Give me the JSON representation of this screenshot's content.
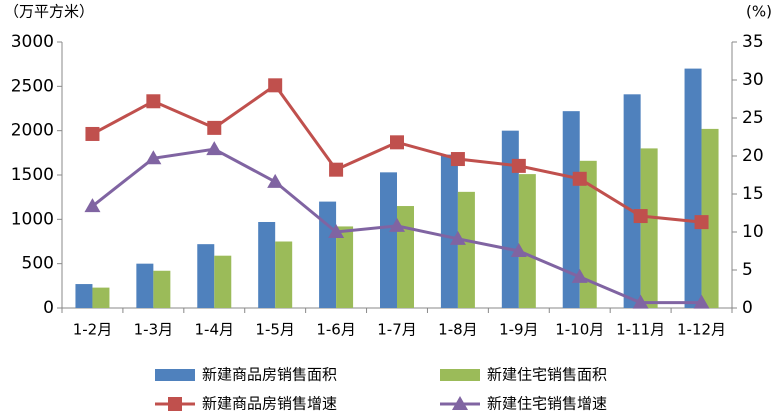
{
  "chart_data": {
    "type": "bar",
    "y_label": "（万平方米）",
    "y2_label": "(%)",
    "categories": [
      "1-2月",
      "1-3月",
      "1-4月",
      "1-5月",
      "1-6月",
      "1-7月",
      "1-8月",
      "1-9月",
      "1-10月",
      "1-11月",
      "1-12月"
    ],
    "series": [
      {
        "name": "新建商品房销售面积",
        "type": "bar",
        "color": "#4f81bd",
        "values": [
          270,
          500,
          720,
          970,
          1200,
          1530,
          1730,
          2000,
          2220,
          2410,
          2700
        ]
      },
      {
        "name": "新建住宅销售面积",
        "type": "bar",
        "color": "#9bbb59",
        "values": [
          230,
          420,
          590,
          750,
          920,
          1150,
          1310,
          1510,
          1660,
          1800,
          2020
        ]
      },
      {
        "name": "新建商品房销售增速",
        "type": "line",
        "axis": "y2",
        "marker": "square",
        "color": "#c0504d",
        "values": [
          22.9,
          27.2,
          23.7,
          29.3,
          18.2,
          21.8,
          19.6,
          18.7,
          17.0,
          12.1,
          11.3
        ]
      },
      {
        "name": "新建住宅销售增速",
        "type": "line",
        "axis": "y2",
        "marker": "triangle",
        "color": "#8064a2",
        "values": [
          13.4,
          19.7,
          20.9,
          16.6,
          10.0,
          10.8,
          9.1,
          7.5,
          4.1,
          0.7,
          0.7
        ]
      }
    ],
    "ylim": [
      0,
      3000
    ],
    "yticks": [
      0,
      500,
      1000,
      1500,
      2000,
      2500,
      3000
    ],
    "y2lim": [
      0,
      35
    ],
    "y2ticks": [
      0,
      5,
      10,
      15,
      20,
      25,
      30,
      35
    ],
    "grid": false
  }
}
